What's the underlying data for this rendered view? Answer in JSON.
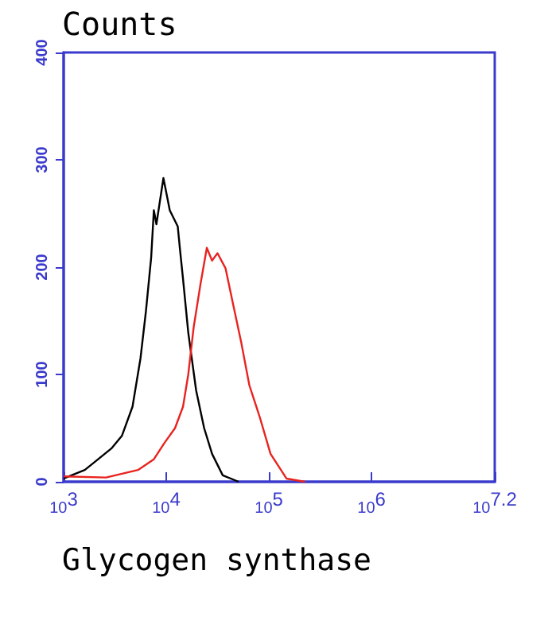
{
  "chart_data": {
    "type": "line",
    "ylabel": "Counts",
    "xlabel": "Glycogen synthase",
    "log": "x",
    "grid": false,
    "marker": "none",
    "line_style": "solid",
    "xlim": [
      1000,
      15848932
    ],
    "xticks": [
      {
        "value": 1000,
        "label": "10$^{3}$"
      },
      {
        "value": 10000,
        "label": "10$^{4}$"
      },
      {
        "value": 100000,
        "label": "10$^{5}$"
      },
      {
        "value": 1000000,
        "label": "10$^{6}$"
      },
      {
        "value": 15848932,
        "label": "10$^{7.2}$"
      }
    ],
    "ylim": [
      0,
      400
    ],
    "yticks": [
      0,
      100,
      200,
      300,
      400
    ],
    "series": [
      {
        "color": "#000000",
        "x": [
          1000,
          1608,
          2168,
          2917,
          3705,
          4690,
          5608,
          6337,
          7127,
          7568,
          8017,
          9380,
          10815,
          12930,
          13550,
          14560,
          16380,
          19550,
          23380,
          27930,
          35480,
          50700
        ],
        "values": [
          3,
          11,
          21,
          31,
          43,
          70,
          115,
          159,
          209,
          253,
          240,
          283,
          253,
          238,
          218,
          189,
          139,
          85,
          50,
          26,
          6,
          0
        ]
      },
      {
        "color": "#e8231f",
        "x": [
          1000,
          2594,
          5297,
          7568,
          9570,
          12170,
          14560,
          16380,
          18490,
          21530,
          24840,
          27930,
          31550,
          37760,
          45080,
          53950,
          64450,
          81580,
          103700,
          148300,
          224900
        ],
        "values": [
          5,
          4,
          11,
          21,
          36,
          50,
          70,
          100,
          144,
          184,
          218,
          206,
          213,
          199,
          164,
          129,
          90,
          60,
          26,
          3,
          0
        ]
      }
    ]
  }
}
